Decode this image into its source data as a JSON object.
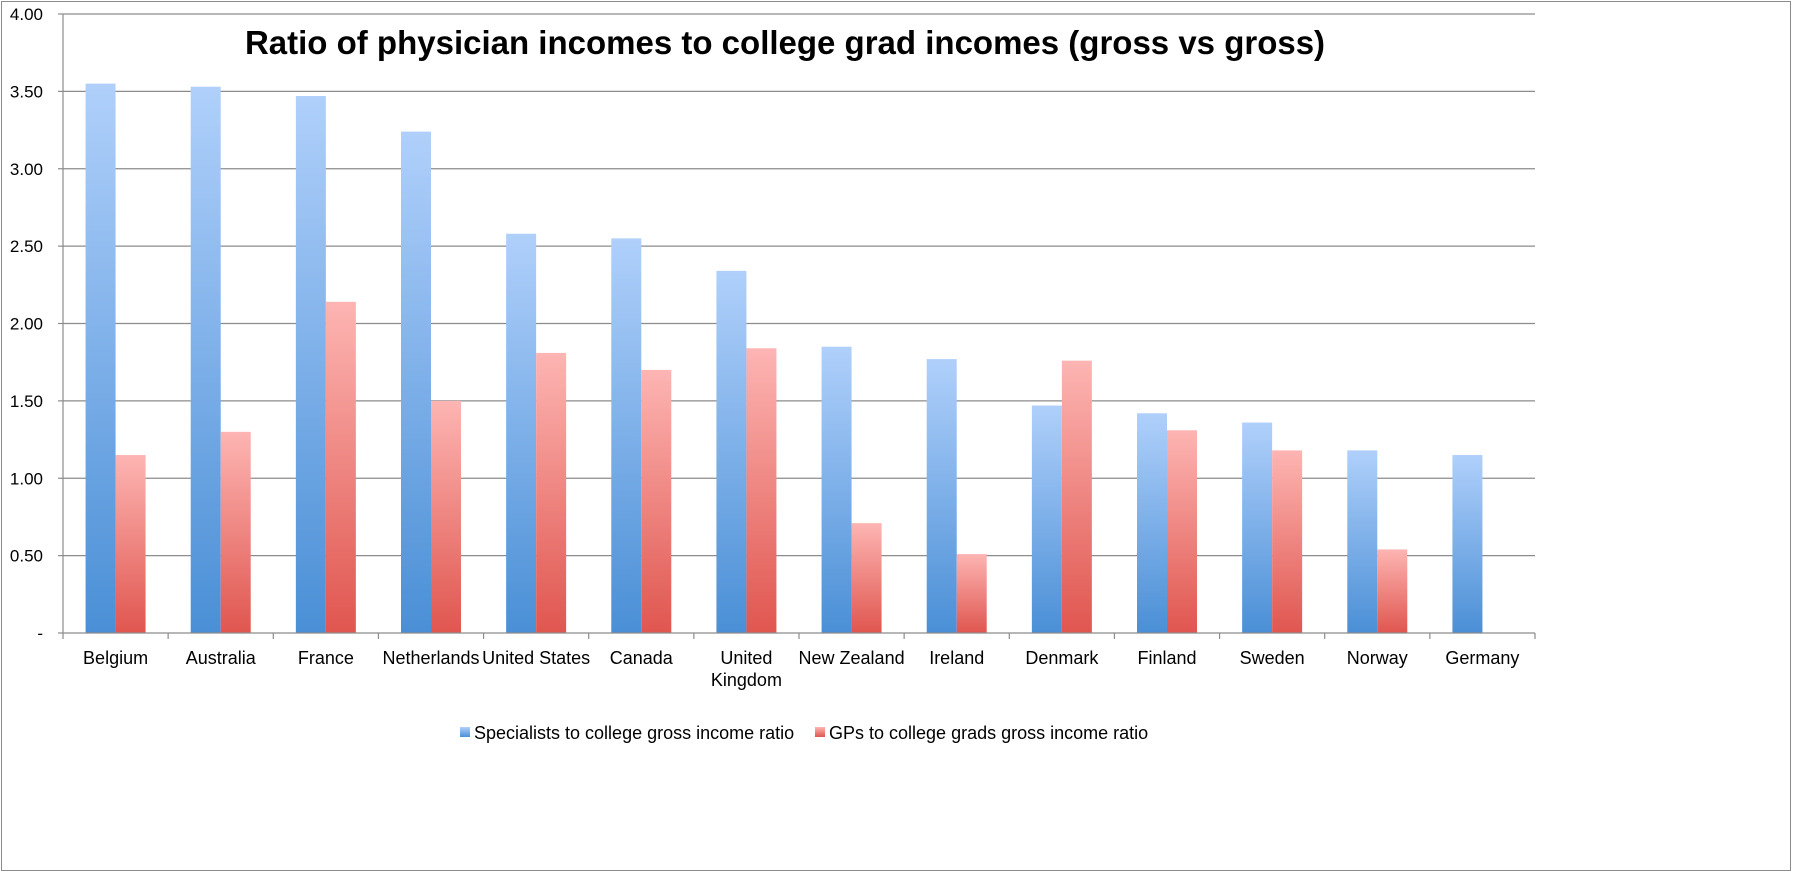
{
  "chart_data": {
    "type": "bar",
    "title": "Ratio of physician incomes to college grad incomes (gross vs gross)",
    "categories": [
      "Belgium",
      "Australia",
      "France",
      "Netherlands",
      "United States",
      "Canada",
      "United Kingdom",
      "New Zealand",
      "Ireland",
      "Denmark",
      "Finland",
      "Sweden",
      "Norway",
      "Germany"
    ],
    "series": [
      {
        "name": "Specialists to college gross income ratio",
        "color": "#4a8fd6",
        "color_light": "#b0d0fb",
        "values": [
          3.55,
          3.53,
          3.47,
          3.24,
          2.58,
          2.55,
          2.34,
          1.85,
          1.77,
          1.47,
          1.42,
          1.36,
          1.18,
          1.15
        ]
      },
      {
        "name": "GPs to college grads gross income ratio",
        "color": "#e0564f",
        "color_light": "#fdb5b3",
        "values": [
          1.15,
          1.3,
          2.14,
          1.5,
          1.81,
          1.7,
          1.84,
          0.71,
          0.51,
          1.76,
          1.31,
          1.18,
          0.54,
          null
        ]
      }
    ],
    "ylim": [
      0,
      4
    ],
    "yticks": [
      "-",
      "0.50",
      "1.00",
      "1.50",
      "2.00",
      "2.50",
      "3.00",
      "3.50",
      "4.00"
    ],
    "grid": true,
    "legend": "bottom"
  }
}
